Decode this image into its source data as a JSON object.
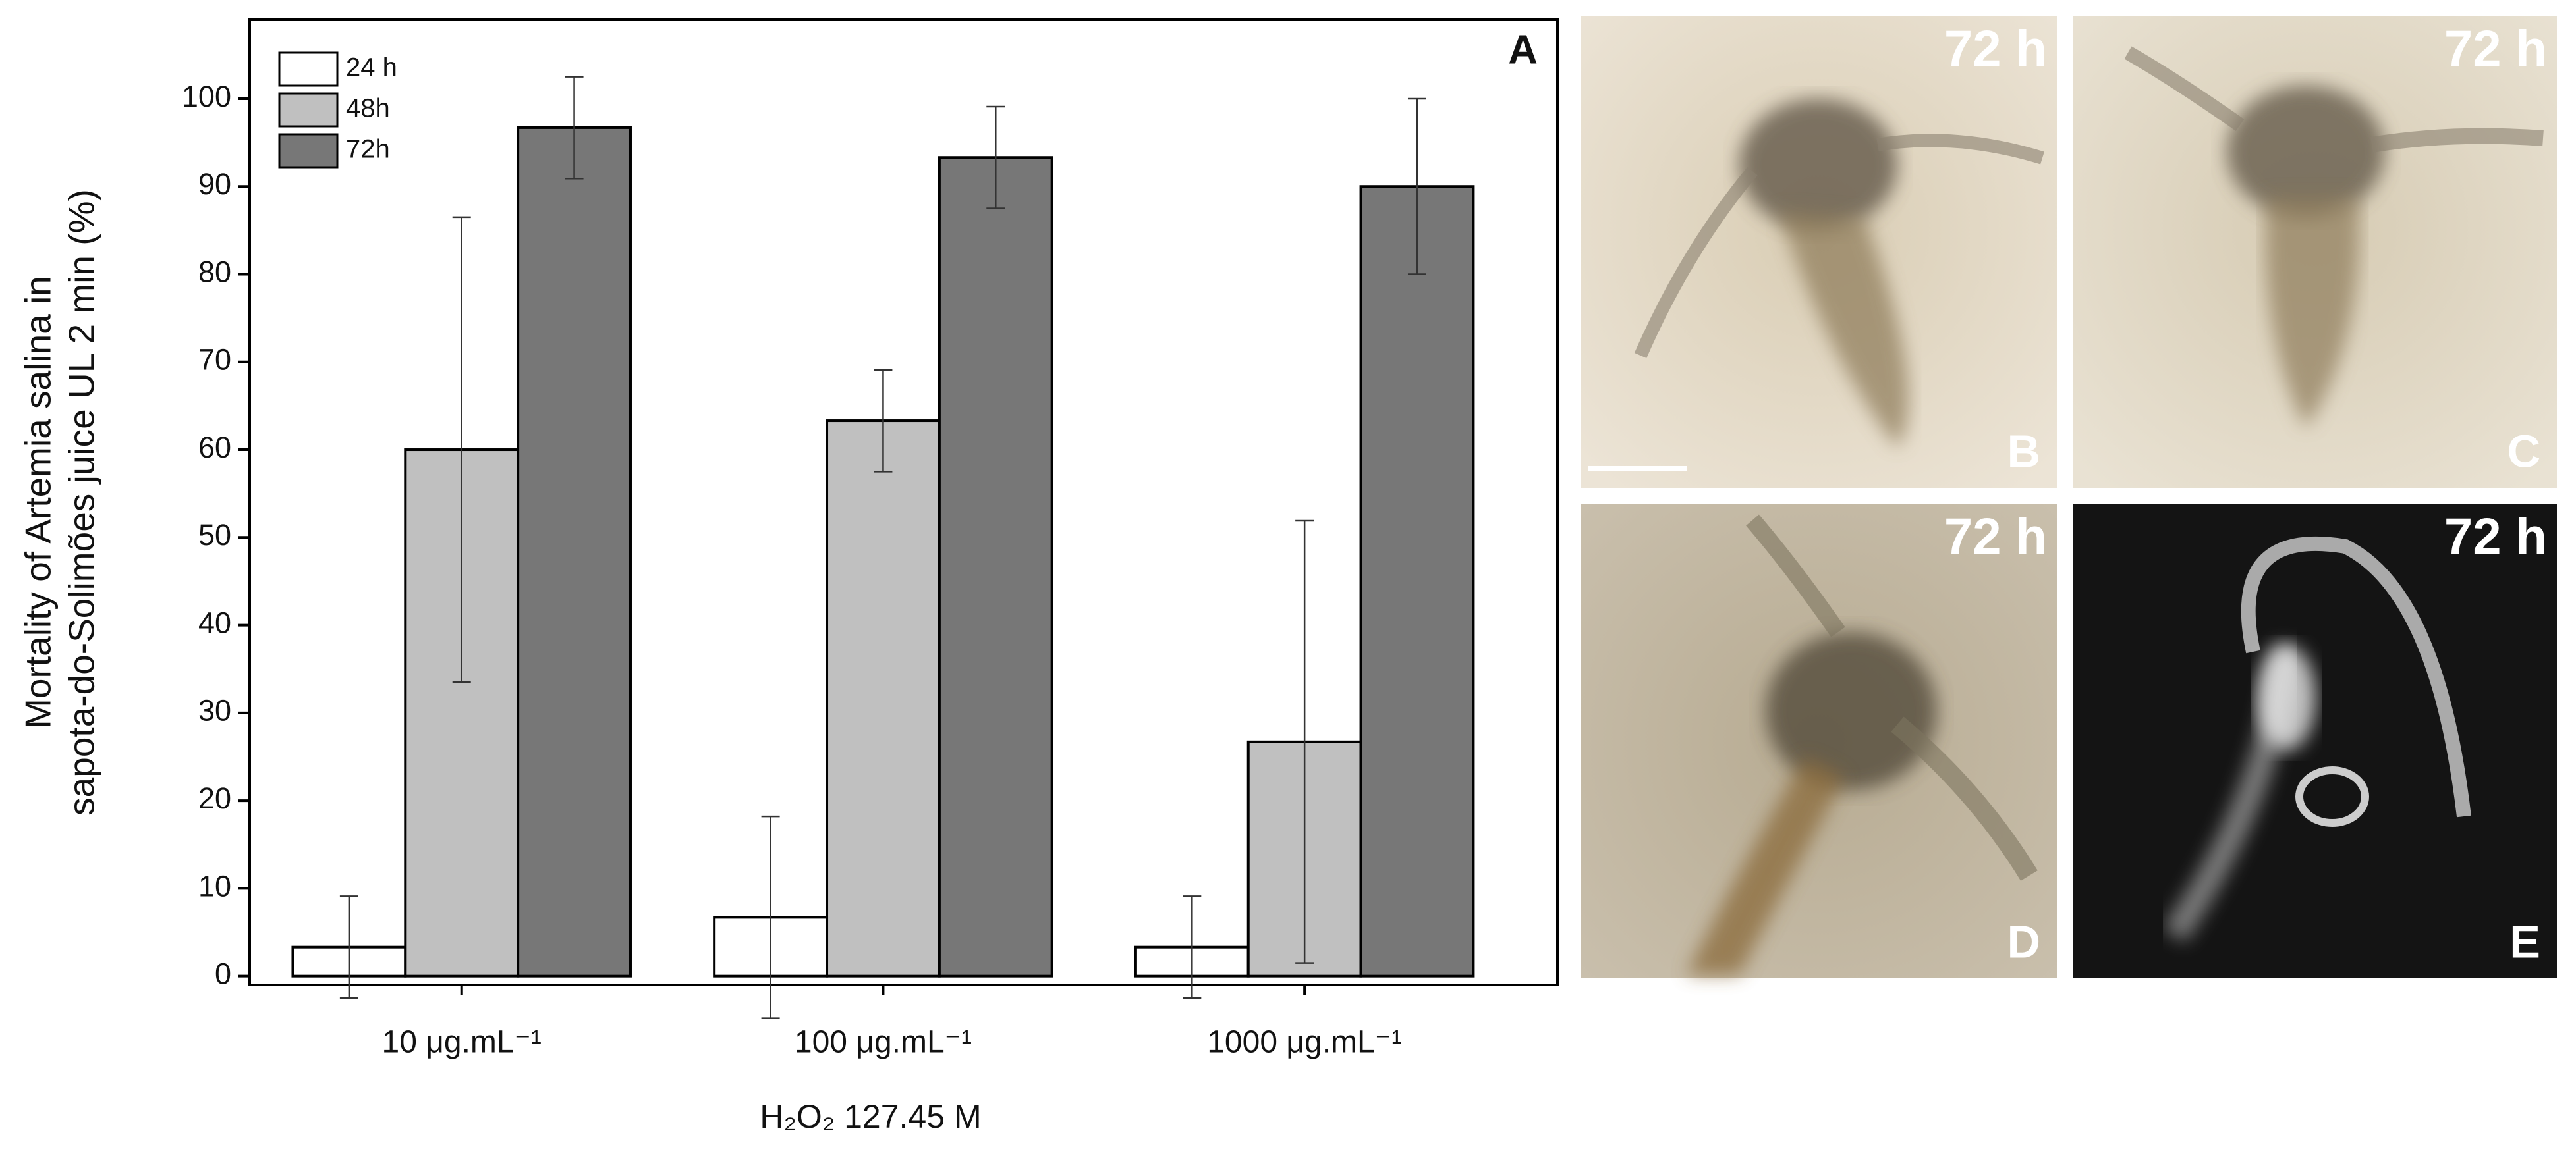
{
  "chart_data": {
    "type": "bar",
    "panel_label": "A",
    "y_label": [
      "Mortality of Artemia salina in",
      "sapota-do-Solimões juice UL 2 min (%)"
    ],
    "x_label": "H₂O₂ 127.45 M",
    "categories": [
      "10 μg.mL⁻¹",
      "100 μg.mL⁻¹",
      "1000 μg.mL⁻¹"
    ],
    "series": [
      {
        "name": "24 h",
        "color": "#ffffff",
        "values": [
          3.3,
          6.7,
          3.3
        ],
        "errors": [
          5.8,
          11.5,
          5.8
        ]
      },
      {
        "name": "48h",
        "color": "#c0c0c0",
        "values": [
          60,
          63.3,
          26.7
        ],
        "errors": [
          26.5,
          5.8,
          25.2
        ]
      },
      {
        "name": "72h",
        "color": "#777777",
        "values": [
          96.7,
          93.3,
          90
        ],
        "errors": [
          5.8,
          5.8,
          10
        ]
      }
    ],
    "ylim": [
      -1,
      109
    ],
    "yticks": [
      0,
      10,
      20,
      30,
      40,
      50,
      60,
      70,
      80,
      90,
      100
    ],
    "grid": false,
    "legend": "top-left"
  },
  "panels": [
    {
      "time": "72 h",
      "label": "B"
    },
    {
      "time": "72 h",
      "label": "C"
    },
    {
      "time": "72 h",
      "label": "D"
    },
    {
      "time": "72 h",
      "label": "E"
    }
  ]
}
